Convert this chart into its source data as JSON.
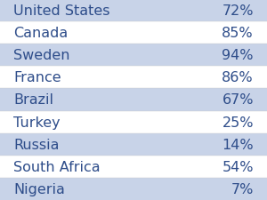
{
  "rows": [
    {
      "country": "United States",
      "value": "72%",
      "shaded": true
    },
    {
      "country": "Canada",
      "value": "85%",
      "shaded": false
    },
    {
      "country": "Sweden",
      "value": "94%",
      "shaded": true
    },
    {
      "country": "France",
      "value": "86%",
      "shaded": false
    },
    {
      "country": "Brazil",
      "value": "67%",
      "shaded": true
    },
    {
      "country": "Turkey",
      "value": "25%",
      "shaded": false
    },
    {
      "country": "Russia",
      "value": "14%",
      "shaded": true
    },
    {
      "country": "South Africa",
      "value": "54%",
      "shaded": false
    },
    {
      "country": "Nigeria",
      "value": "7%",
      "shaded": true
    }
  ],
  "shaded_color": "#c8d3e8",
  "white_color": "#ffffff",
  "text_color": "#2e4d8a",
  "font_size": 11.5,
  "background_color": "#ffffff"
}
